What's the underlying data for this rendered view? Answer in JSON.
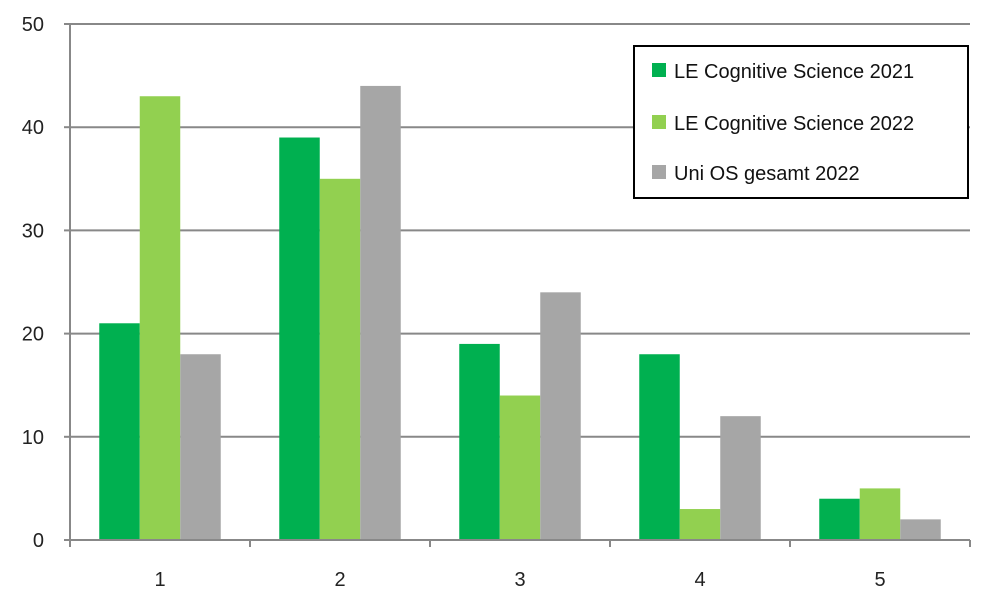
{
  "chart_data": {
    "type": "bar",
    "categories": [
      "1",
      "2",
      "3",
      "4",
      "5"
    ],
    "series": [
      {
        "name": "LE Cognitive Science 2021",
        "color": "#00b050",
        "values": [
          21,
          39,
          19,
          18,
          4
        ]
      },
      {
        "name": "LE Cognitive Science 2022",
        "color": "#92d050",
        "values": [
          43,
          35,
          14,
          3,
          5
        ]
      },
      {
        "name": "Uni OS gesamt 2022",
        "color": "#a6a6a6",
        "values": [
          18,
          44,
          24,
          12,
          2
        ]
      }
    ],
    "title": "",
    "xlabel": "",
    "ylabel": "",
    "ylim": [
      0,
      50
    ],
    "yticks": [
      0,
      10,
      20,
      30,
      40,
      50
    ],
    "grid": true,
    "legend_position": "top-right"
  }
}
